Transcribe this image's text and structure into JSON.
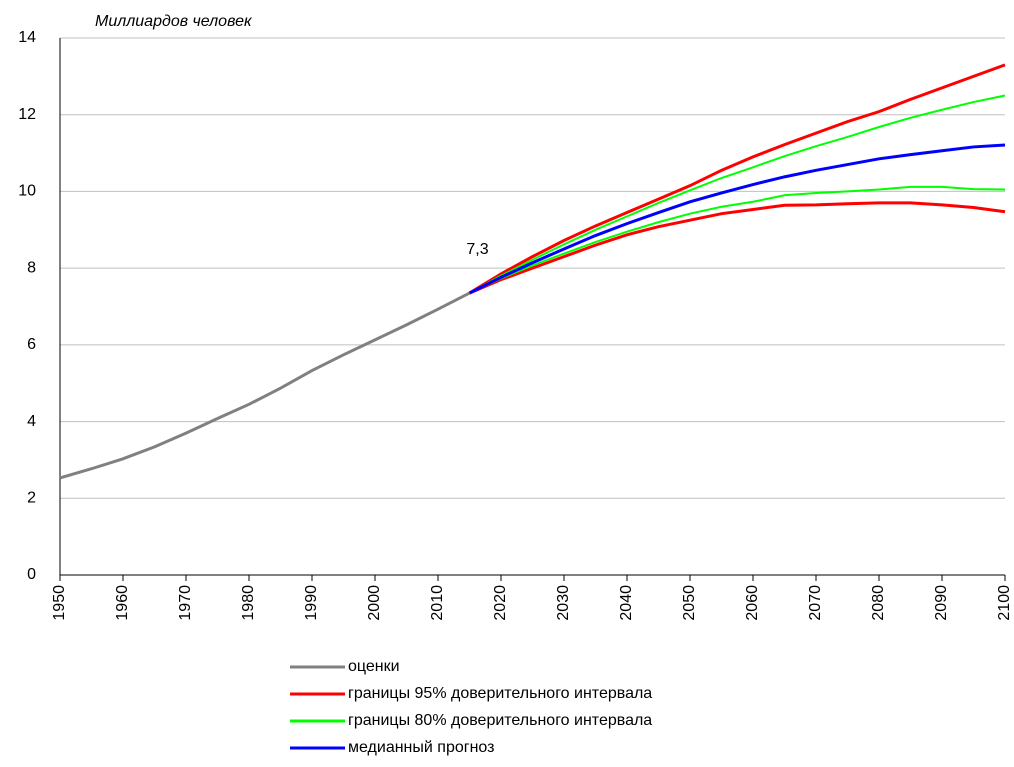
{
  "chart_data": {
    "type": "line",
    "title": "Миллиардов человек",
    "x": [
      1950,
      1955,
      1960,
      1965,
      1970,
      1975,
      1980,
      1985,
      1990,
      1995,
      2000,
      2005,
      2010,
      2015,
      2020,
      2025,
      2030,
      2035,
      2040,
      2045,
      2050,
      2055,
      2060,
      2065,
      2070,
      2075,
      2080,
      2085,
      2090,
      2095,
      2100
    ],
    "series": [
      {
        "name": "оценки",
        "color": "#808080",
        "values": [
          2.53,
          2.77,
          3.03,
          3.34,
          3.7,
          4.08,
          4.45,
          4.87,
          5.33,
          5.74,
          6.13,
          6.52,
          6.93,
          7.35,
          null,
          null,
          null,
          null,
          null,
          null,
          null,
          null,
          null,
          null,
          null,
          null,
          null,
          null,
          null,
          null,
          null
        ]
      },
      {
        "name": "границы 95% доверительного интервала",
        "color": "#ff0000",
        "upper": [
          null,
          null,
          null,
          null,
          null,
          null,
          null,
          null,
          null,
          null,
          null,
          null,
          null,
          7.35,
          7.85,
          8.3,
          8.72,
          9.1,
          9.45,
          9.8,
          10.15,
          10.55,
          10.9,
          11.22,
          11.52,
          11.82,
          12.08,
          12.4,
          12.7,
          13.0,
          13.3
        ],
        "lower": [
          null,
          null,
          null,
          null,
          null,
          null,
          null,
          null,
          null,
          null,
          null,
          null,
          null,
          7.35,
          7.7,
          8.0,
          8.3,
          8.6,
          8.87,
          9.08,
          9.25,
          9.42,
          9.53,
          9.64,
          9.65,
          9.68,
          9.7,
          9.7,
          9.65,
          9.58,
          9.47
        ]
      },
      {
        "name": "границы 80% доверительного интервала",
        "color": "#00ff00",
        "upper": [
          null,
          null,
          null,
          null,
          null,
          null,
          null,
          null,
          null,
          null,
          null,
          null,
          null,
          7.35,
          7.8,
          8.22,
          8.62,
          9.0,
          9.35,
          9.7,
          10.03,
          10.35,
          10.63,
          10.92,
          11.18,
          11.42,
          11.68,
          11.92,
          12.13,
          12.33,
          12.5
        ],
        "lower": [
          null,
          null,
          null,
          null,
          null,
          null,
          null,
          null,
          null,
          null,
          null,
          null,
          null,
          7.35,
          7.73,
          8.07,
          8.38,
          8.68,
          8.95,
          9.2,
          9.42,
          9.6,
          9.73,
          9.9,
          9.96,
          10.0,
          10.05,
          10.12,
          10.12,
          10.06,
          10.05
        ]
      },
      {
        "name": "медианный прогноз",
        "color": "#0000ff",
        "values": [
          null,
          null,
          null,
          null,
          null,
          null,
          null,
          null,
          null,
          null,
          null,
          null,
          null,
          7.35,
          7.76,
          8.14,
          8.5,
          8.85,
          9.16,
          9.45,
          9.73,
          9.96,
          10.18,
          10.38,
          10.55,
          10.7,
          10.85,
          10.96,
          11.06,
          11.16,
          11.21
        ]
      }
    ],
    "annotations": [
      {
        "text": "7,3",
        "x": 2015,
        "y": 7.3
      }
    ],
    "xlim": [
      1950,
      2100
    ],
    "xticks": [
      1950,
      1960,
      1970,
      1980,
      1990,
      2000,
      2010,
      2020,
      2030,
      2040,
      2050,
      2060,
      2070,
      2080,
      2090,
      2100
    ],
    "ylim": [
      0,
      14
    ],
    "yticks": [
      0,
      2,
      4,
      6,
      8,
      10,
      12,
      14
    ],
    "grid": true,
    "legend": "bottom"
  }
}
